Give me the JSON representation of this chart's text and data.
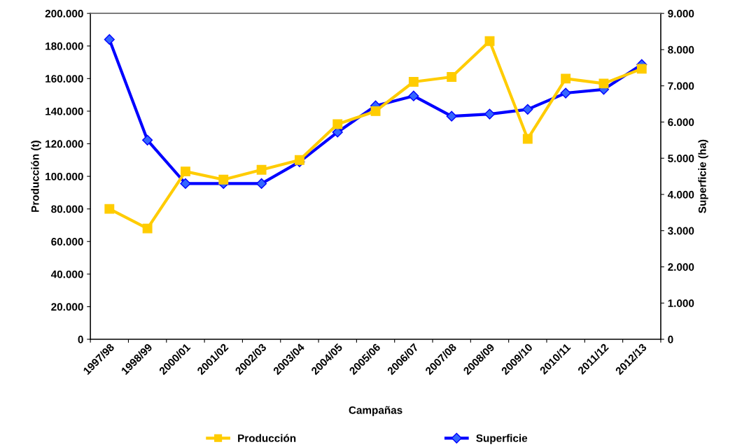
{
  "chart_data": {
    "type": "line",
    "xlabel": "Campañas",
    "ylabel": "Producción (t)",
    "y2label": "Superficie (ha)",
    "categories": [
      "1997/98",
      "1998/99",
      "2000/01",
      "2001/02",
      "2002/03",
      "2003/04",
      "2004/05",
      "2005/06",
      "2006/07",
      "2007/08",
      "2008/09",
      "2009/10",
      "2010/11",
      "2011/12",
      "2012/13"
    ],
    "series": [
      {
        "name": "Producción",
        "color": "#ffcc00",
        "marker": "square",
        "values": [
          80000,
          68000,
          103000,
          98000,
          104000,
          110000,
          132000,
          140000,
          158000,
          161000,
          183000,
          123000,
          160000,
          157000,
          166000
        ]
      },
      {
        "name": "Superficie",
        "color": "#0000ff",
        "marker": "diamond",
        "axis": "y2",
        "values": [
          8280,
          5500,
          4300,
          4300,
          4300,
          4900,
          5720,
          6450,
          6720,
          6160,
          6220,
          6350,
          6800,
          6900,
          7590
        ]
      }
    ],
    "ylim": [
      0,
      200000
    ],
    "yticks": [
      0,
      {
        "value": 20000,
        "label": "20.000"
      },
      {
        "value": 40000,
        "label": "40.000"
      },
      {
        "value": 60000,
        "label": "60.000"
      },
      {
        "value": 80000,
        "label": "80.000"
      },
      {
        "value": 100000,
        "label": "100.000"
      },
      {
        "value": 120000,
        "label": "120.000"
      },
      {
        "value": 140000,
        "label": "140.000"
      },
      {
        "value": 160000,
        "label": "160.000"
      },
      {
        "value": 180000,
        "label": "180.000"
      },
      {
        "value": 200000,
        "label": "200.000"
      }
    ],
    "y2lim": [
      0,
      9000
    ],
    "y2ticks": [
      0,
      {
        "value": 1000,
        "label": "1.000"
      },
      {
        "value": 2000,
        "label": "2.000"
      },
      {
        "value": 3000,
        "label": "3.000"
      },
      {
        "value": 4000,
        "label": "4.000"
      },
      {
        "value": 5000,
        "label": "5.000"
      },
      {
        "value": 6000,
        "label": "6.000"
      },
      {
        "value": 7000,
        "label": "7.000"
      },
      {
        "value": 8000,
        "label": "8.000"
      },
      {
        "value": 9000,
        "label": "9.000"
      }
    ],
    "grid": false,
    "legend": "bottom",
    "line_style": "solid"
  }
}
